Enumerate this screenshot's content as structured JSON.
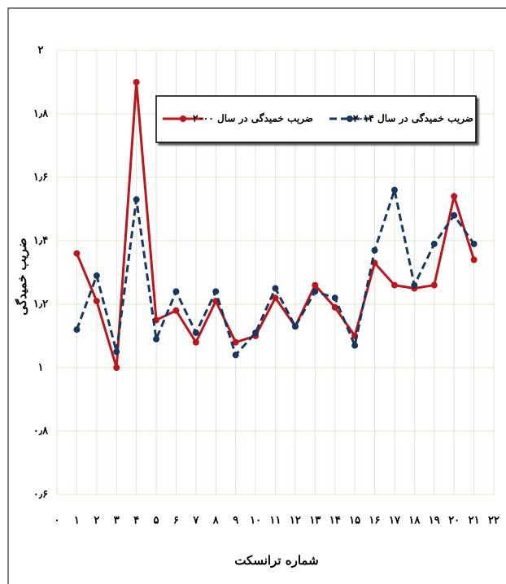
{
  "chart_data": {
    "type": "line",
    "ylabel": "ضریب خمیدگی",
    "xlabel": "شماره ترانسکت",
    "x": [
      1,
      2,
      3,
      4,
      5,
      6,
      7,
      8,
      9,
      10,
      11,
      12,
      13,
      14,
      15,
      16,
      17,
      18,
      19,
      20,
      21
    ],
    "series": [
      {
        "name": "ضریب خمیدگی در سال ۲۰۰۰",
        "color": "#c0141c",
        "dashed": false,
        "values": [
          1.36,
          1.21,
          1.0,
          1.9,
          1.15,
          1.18,
          1.08,
          1.21,
          1.08,
          1.1,
          1.22,
          1.13,
          1.26,
          1.19,
          1.1,
          1.33,
          1.26,
          1.25,
          1.26,
          1.54,
          1.34
        ]
      },
      {
        "name": "ضریب خمیدگی در سال ۲۰۱۴",
        "color": "#17375e",
        "dashed": true,
        "values": [
          1.12,
          1.29,
          1.05,
          1.53,
          1.09,
          1.24,
          1.11,
          1.24,
          1.04,
          1.11,
          1.25,
          1.13,
          1.24,
          1.22,
          1.07,
          1.37,
          1.56,
          1.26,
          1.39,
          1.48,
          1.39
        ]
      }
    ],
    "xlim": [
      0,
      22
    ],
    "xticks": [
      {
        "value": 0,
        "label": "۰"
      },
      {
        "value": 1,
        "label": "۱"
      },
      {
        "value": 2,
        "label": "۲"
      },
      {
        "value": 3,
        "label": "۳"
      },
      {
        "value": 4,
        "label": "۴"
      },
      {
        "value": 5,
        "label": "۵"
      },
      {
        "value": 6,
        "label": "۶"
      },
      {
        "value": 7,
        "label": "۷"
      },
      {
        "value": 8,
        "label": "۸"
      },
      {
        "value": 9,
        "label": "۹"
      },
      {
        "value": 10,
        "label": "۱۰"
      },
      {
        "value": 11,
        "label": "۱۱"
      },
      {
        "value": 12,
        "label": "۱۲"
      },
      {
        "value": 13,
        "label": "۱۳"
      },
      {
        "value": 14,
        "label": "۱۴"
      },
      {
        "value": 15,
        "label": "۱۵"
      },
      {
        "value": 16,
        "label": "۱۶"
      },
      {
        "value": 17,
        "label": "۱۷"
      },
      {
        "value": 18,
        "label": "۱۸"
      },
      {
        "value": 19,
        "label": "۱۹"
      },
      {
        "value": 20,
        "label": "۲۰"
      },
      {
        "value": 21,
        "label": "۲۱"
      },
      {
        "value": 22,
        "label": "۲۲"
      }
    ],
    "ylim": [
      0.6,
      2
    ],
    "yticks": [
      {
        "value": 0.6,
        "label": "۰٫۶"
      },
      {
        "value": 0.8,
        "label": "۰٫۸"
      },
      {
        "value": 1,
        "label": "۱"
      },
      {
        "value": 1.2,
        "label": "۱٫۲"
      },
      {
        "value": 1.4,
        "label": "۱٫۴"
      },
      {
        "value": 1.6,
        "label": "۱٫۶"
      },
      {
        "value": 1.8,
        "label": "۱٫۸"
      },
      {
        "value": 2,
        "label": "۲"
      }
    ],
    "grid": true,
    "grid_color": "#d8ebc8"
  }
}
